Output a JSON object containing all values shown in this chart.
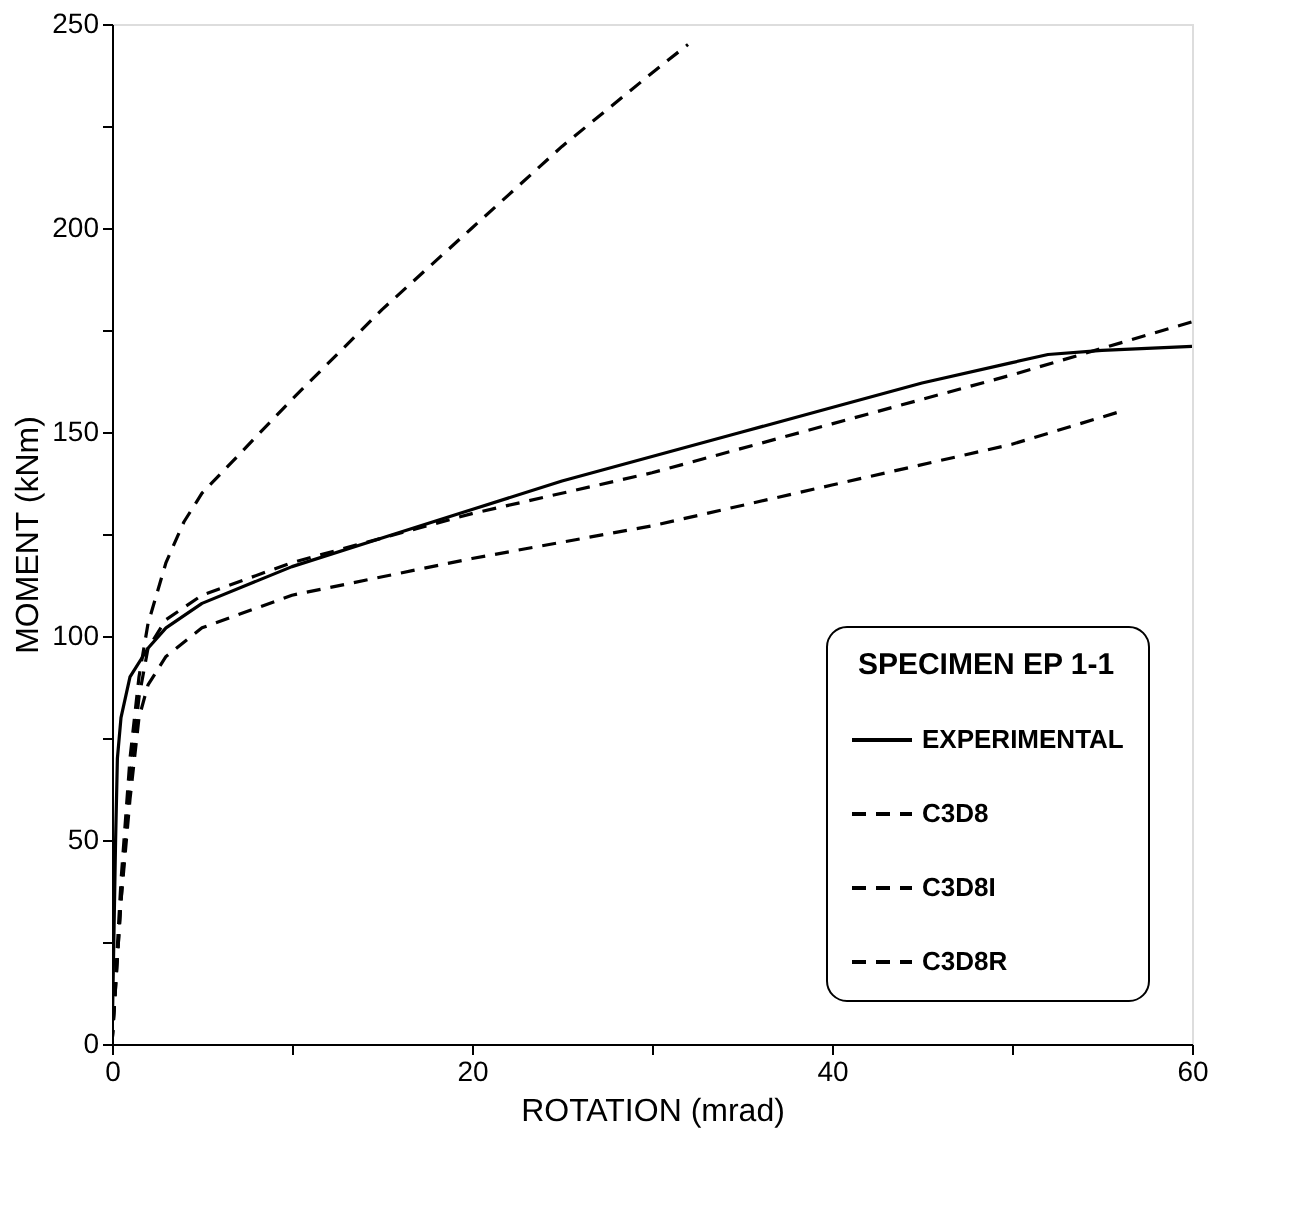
{
  "chart_data": {
    "type": "line",
    "xlabel": "ROTATION (mrad)",
    "ylabel": "MOMENT (kNm)",
    "legend_title": "SPECIMEN EP 1-1",
    "legend": "bottom right",
    "grid": false,
    "marker": "none",
    "xlim": [
      0,
      60
    ],
    "ylim": [
      0,
      250
    ],
    "xticks": [
      0,
      {
        "value": 10,
        "label": null
      },
      20,
      {
        "value": 30,
        "label": null
      },
      40,
      {
        "value": 50,
        "label": null
      },
      60
    ],
    "yticks": [
      0,
      {
        "value": 25,
        "label": null
      },
      50,
      {
        "value": 75,
        "label": null
      },
      100,
      {
        "value": 125,
        "label": null
      },
      150,
      {
        "value": 175,
        "label": null
      },
      200,
      {
        "value": 225,
        "label": null
      },
      250
    ],
    "series": [
      {
        "name": "EXPERIMENTAL",
        "color": "#000000",
        "line_style": "solid",
        "x": [
          0,
          0.2,
          0.3,
          0.5,
          1,
          2,
          3,
          5,
          10,
          15,
          20,
          25,
          30,
          35,
          40,
          45,
          50,
          52,
          55,
          60
        ],
        "values": [
          0,
          50,
          70,
          80,
          90,
          97,
          102,
          108,
          117,
          124,
          131,
          138,
          144,
          150,
          156,
          162,
          167,
          169,
          170,
          171
        ]
      },
      {
        "name": "C3D8",
        "color": "#000000",
        "line_style": "dashed",
        "x": [
          0,
          0.5,
          1,
          1.5,
          2,
          3,
          4,
          5,
          10,
          15,
          20,
          25,
          30,
          32
        ],
        "values": [
          0,
          40,
          70,
          90,
          103,
          118,
          128,
          135,
          158,
          180,
          200,
          220,
          238,
          245
        ]
      },
      {
        "name": "C3D8I",
        "color": "#000000",
        "line_style": "dashed",
        "x": [
          0,
          0.5,
          1,
          1.5,
          2,
          3,
          5,
          10,
          20,
          30,
          40,
          50,
          60
        ],
        "values": [
          0,
          35,
          65,
          85,
          97,
          104,
          110,
          118,
          130,
          140,
          152,
          164,
          177
        ]
      },
      {
        "name": "C3D8R",
        "color": "#000000",
        "line_style": "dashed",
        "x": [
          0,
          0.5,
          1,
          1.5,
          2,
          3,
          5,
          10,
          20,
          30,
          40,
          50,
          56
        ],
        "values": [
          0,
          35,
          60,
          80,
          88,
          95,
          102,
          110,
          119,
          127,
          137,
          147,
          155
        ]
      }
    ]
  }
}
